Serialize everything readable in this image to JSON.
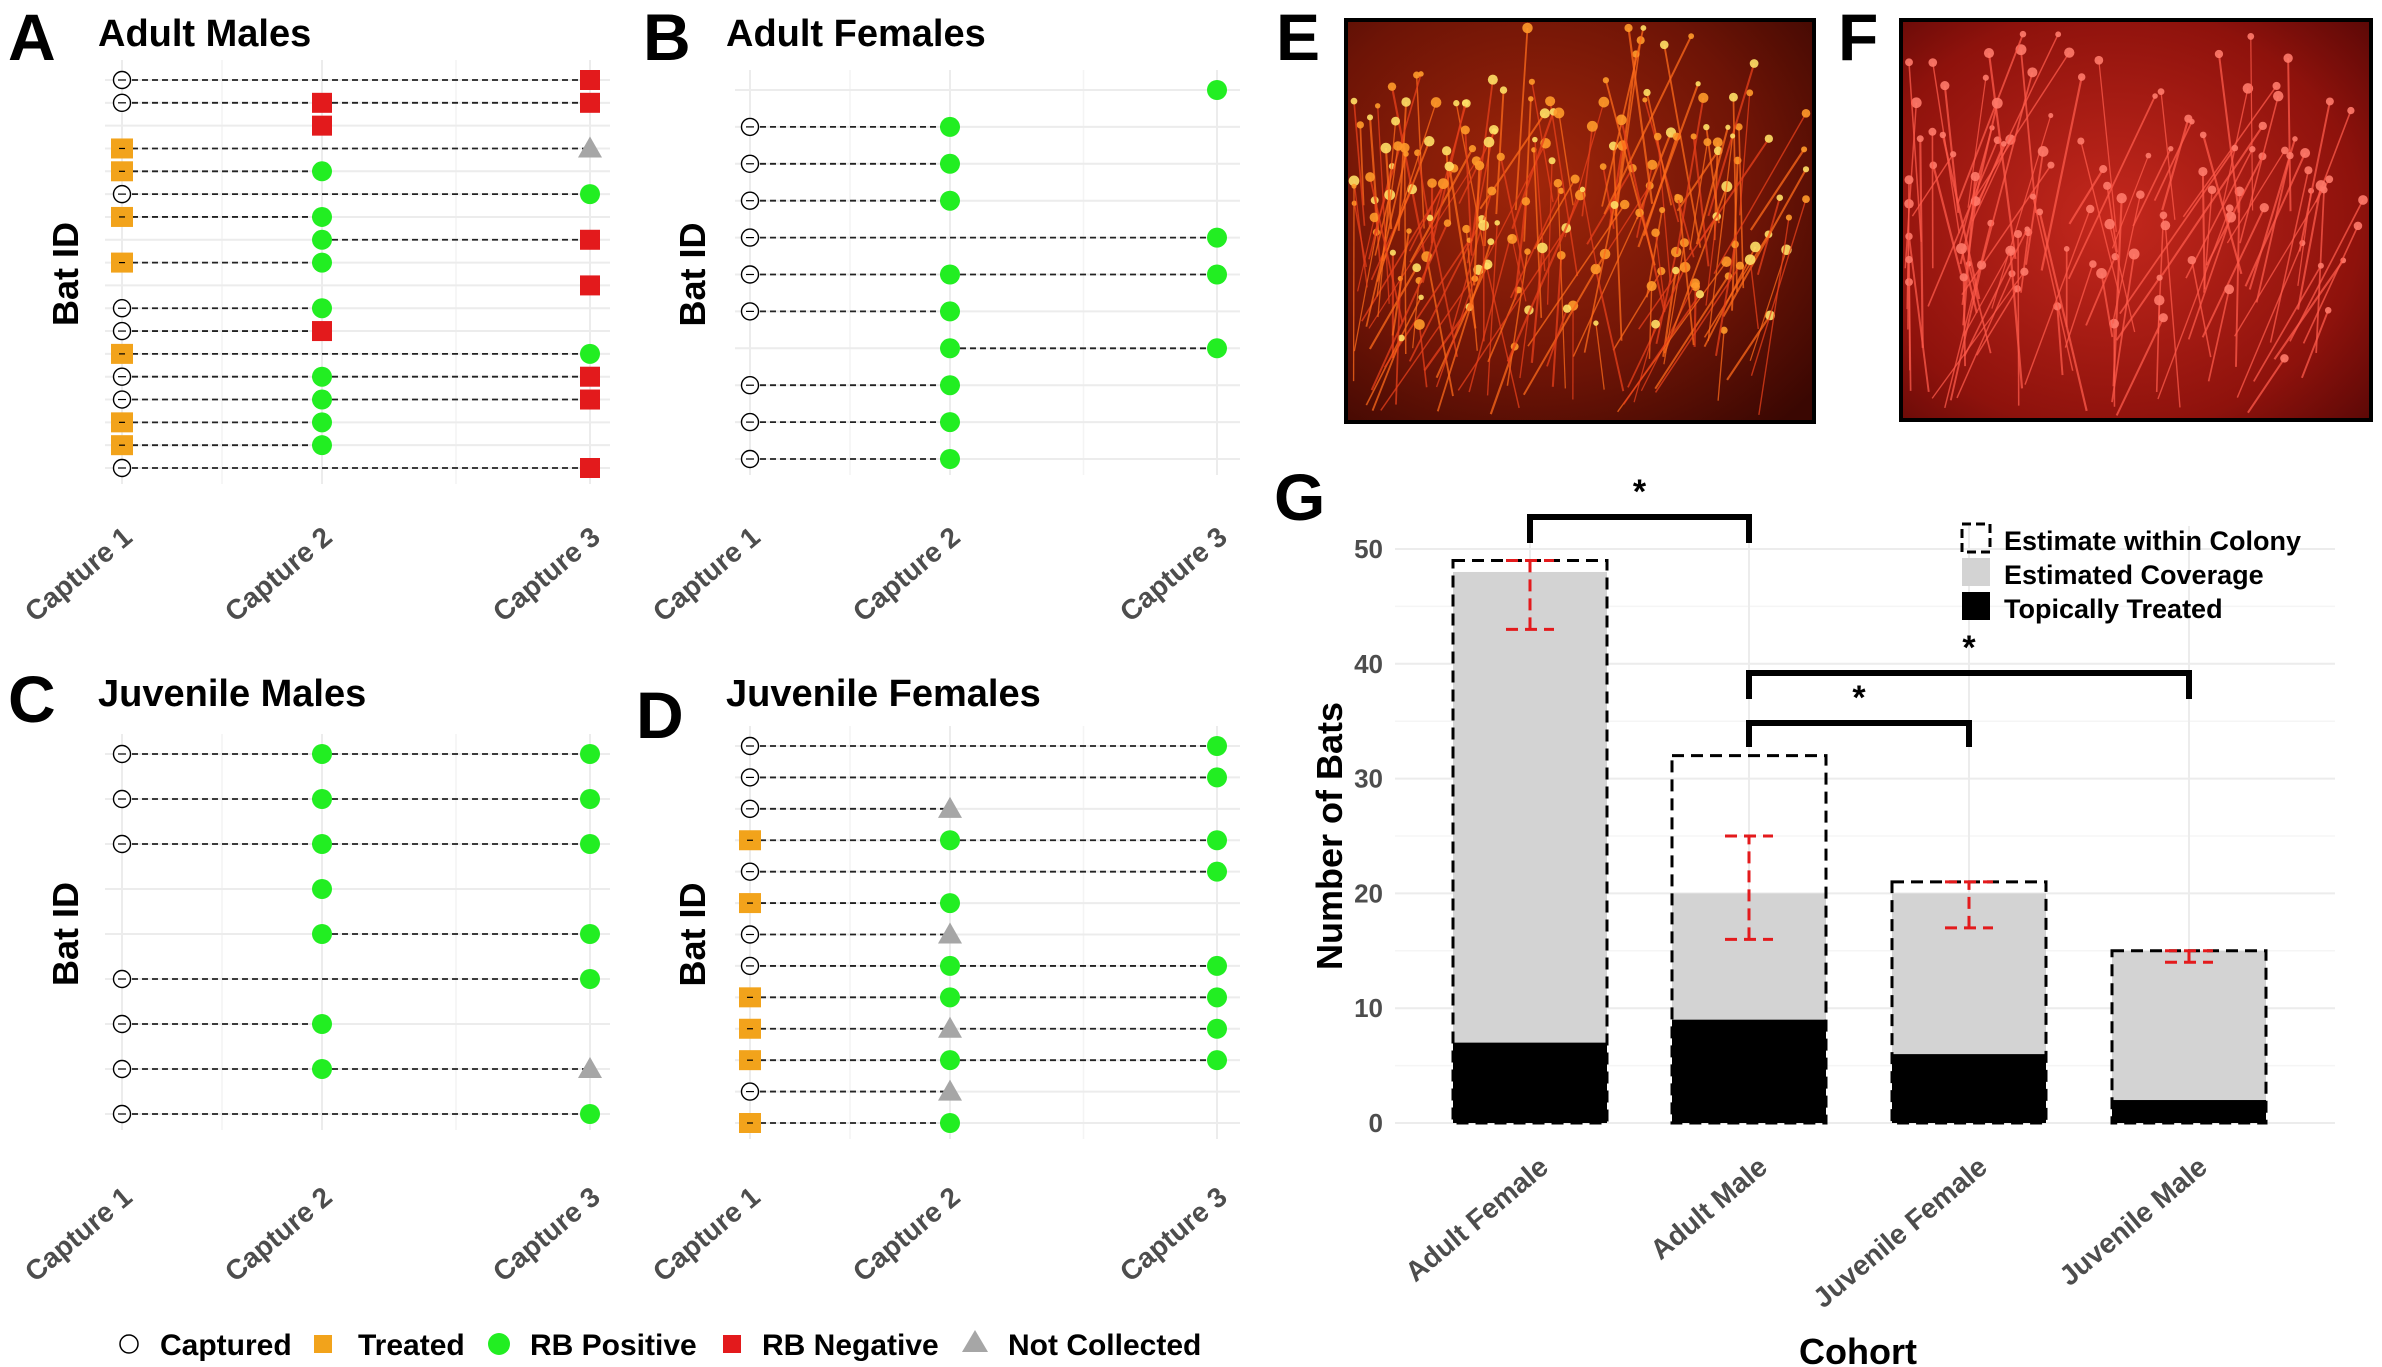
{
  "panel_letters": {
    "A": "A",
    "B": "B",
    "C": "C",
    "D": "D",
    "E": "E",
    "F": "F",
    "G": "G"
  },
  "colors": {
    "captured": "#ffffff",
    "treated": "#f2a31b",
    "rb_positive": "#22ee22",
    "rb_negative": "#e31a1c",
    "not_collected": "#a6a6a6",
    "bar_coverage": "#d3d3d3",
    "bar_treated": "#000000",
    "error_bar": "#e31a1c"
  },
  "legend": {
    "captured": "Captured",
    "treated": "Treated",
    "rb_positive": "RB Positive",
    "rb_negative": "RB Negative",
    "not_collected": "Not Collected"
  },
  "capture_panels": {
    "y_label": "Bat ID",
    "x_ticks": [
      "Capture 1",
      "Capture 2",
      "Capture 3"
    ]
  },
  "chart_data": [
    {
      "panel": "A",
      "type": "scatter",
      "title": "Adult Males",
      "ylabel": "Bat ID",
      "categories": [
        "Capture 1",
        "Capture 2",
        "Capture 3"
      ],
      "rows": [
        {
          "c1": "captured",
          "c2": null,
          "c3": "rb_negative",
          "line": [
            1,
            3
          ]
        },
        {
          "c1": "captured",
          "c2": "rb_negative",
          "c3": "rb_negative",
          "line": [
            1,
            3
          ]
        },
        {
          "c1": null,
          "c2": "rb_negative",
          "c3": null,
          "line": null
        },
        {
          "c1": "treated",
          "c2": null,
          "c3": "not_collected",
          "line": [
            1,
            3
          ]
        },
        {
          "c1": "treated",
          "c2": "rb_positive",
          "c3": null,
          "line": [
            1,
            2
          ]
        },
        {
          "c1": "captured",
          "c2": null,
          "c3": "rb_positive",
          "line": [
            1,
            3
          ]
        },
        {
          "c1": "treated",
          "c2": "rb_positive",
          "c3": null,
          "line": [
            1,
            2
          ]
        },
        {
          "c1": null,
          "c2": "rb_positive",
          "c3": "rb_negative",
          "line": [
            2,
            3
          ]
        },
        {
          "c1": "treated",
          "c2": "rb_positive",
          "c3": null,
          "line": [
            1,
            2
          ]
        },
        {
          "c1": null,
          "c2": null,
          "c3": "rb_negative",
          "line": null
        },
        {
          "c1": "captured",
          "c2": "rb_positive",
          "c3": null,
          "line": [
            1,
            2
          ]
        },
        {
          "c1": "captured",
          "c2": "rb_negative",
          "c3": null,
          "line": [
            1,
            2
          ]
        },
        {
          "c1": "treated",
          "c2": null,
          "c3": "rb_positive",
          "line": [
            1,
            3
          ]
        },
        {
          "c1": "captured",
          "c2": "rb_positive",
          "c3": "rb_negative",
          "line": [
            1,
            3
          ]
        },
        {
          "c1": "captured",
          "c2": "rb_positive",
          "c3": "rb_negative",
          "line": [
            1,
            3
          ]
        },
        {
          "c1": "treated",
          "c2": "rb_positive",
          "c3": null,
          "line": [
            1,
            2
          ]
        },
        {
          "c1": "treated",
          "c2": "rb_positive",
          "c3": null,
          "line": [
            1,
            2
          ]
        },
        {
          "c1": "captured",
          "c2": null,
          "c3": "rb_negative",
          "line": [
            1,
            3
          ]
        }
      ]
    },
    {
      "panel": "B",
      "type": "scatter",
      "title": "Adult Females",
      "ylabel": "Bat ID",
      "categories": [
        "Capture 1",
        "Capture 2",
        "Capture 3"
      ],
      "rows": [
        {
          "c1": null,
          "c2": null,
          "c3": "rb_positive",
          "line": null
        },
        {
          "c1": "captured",
          "c2": "rb_positive",
          "c3": null,
          "line": [
            1,
            2
          ]
        },
        {
          "c1": "captured",
          "c2": "rb_positive",
          "c3": null,
          "line": [
            1,
            2
          ]
        },
        {
          "c1": "captured",
          "c2": "rb_positive",
          "c3": null,
          "line": [
            1,
            2
          ]
        },
        {
          "c1": "captured",
          "c2": null,
          "c3": "rb_positive",
          "line": [
            1,
            3
          ]
        },
        {
          "c1": "captured",
          "c2": "rb_positive",
          "c3": "rb_positive",
          "line": [
            1,
            3
          ]
        },
        {
          "c1": "captured",
          "c2": "rb_positive",
          "c3": null,
          "line": [
            1,
            2
          ]
        },
        {
          "c1": null,
          "c2": "rb_positive",
          "c3": "rb_positive",
          "line": [
            2,
            3
          ]
        },
        {
          "c1": "captured",
          "c2": "rb_positive",
          "c3": null,
          "line": [
            1,
            2
          ]
        },
        {
          "c1": "captured",
          "c2": "rb_positive",
          "c3": null,
          "line": [
            1,
            2
          ]
        },
        {
          "c1": "captured",
          "c2": "rb_positive",
          "c3": null,
          "line": [
            1,
            2
          ]
        }
      ]
    },
    {
      "panel": "C",
      "type": "scatter",
      "title": "Juvenile Males",
      "ylabel": "Bat ID",
      "categories": [
        "Capture 1",
        "Capture 2",
        "Capture 3"
      ],
      "rows": [
        {
          "c1": "captured",
          "c2": "rb_positive",
          "c3": "rb_positive",
          "line": [
            1,
            3
          ]
        },
        {
          "c1": "captured",
          "c2": "rb_positive",
          "c3": "rb_positive",
          "line": [
            1,
            3
          ]
        },
        {
          "c1": "captured",
          "c2": "rb_positive",
          "c3": "rb_positive",
          "line": [
            1,
            3
          ]
        },
        {
          "c1": null,
          "c2": "rb_positive",
          "c3": null,
          "line": null
        },
        {
          "c1": null,
          "c2": "rb_positive",
          "c3": "rb_positive",
          "line": [
            2,
            3
          ]
        },
        {
          "c1": "captured",
          "c2": null,
          "c3": "rb_positive",
          "line": [
            1,
            3
          ]
        },
        {
          "c1": "captured",
          "c2": "rb_positive",
          "c3": null,
          "line": [
            1,
            2
          ]
        },
        {
          "c1": "captured",
          "c2": "rb_positive",
          "c3": "not_collected",
          "line": [
            1,
            3
          ]
        },
        {
          "c1": "captured",
          "c2": null,
          "c3": "rb_positive",
          "line": [
            1,
            3
          ]
        }
      ]
    },
    {
      "panel": "D",
      "type": "scatter",
      "title": "Juvenile Females",
      "ylabel": "Bat ID",
      "categories": [
        "Capture 1",
        "Capture 2",
        "Capture 3"
      ],
      "rows": [
        {
          "c1": "captured",
          "c2": null,
          "c3": "rb_positive",
          "line": [
            1,
            3
          ]
        },
        {
          "c1": "captured",
          "c2": null,
          "c3": "rb_positive",
          "line": [
            1,
            3
          ]
        },
        {
          "c1": "captured",
          "c2": "not_collected",
          "c3": null,
          "line": [
            1,
            2
          ]
        },
        {
          "c1": "treated",
          "c2": "rb_positive",
          "c3": "rb_positive",
          "line": [
            1,
            3
          ]
        },
        {
          "c1": "captured",
          "c2": null,
          "c3": "rb_positive",
          "line": [
            1,
            3
          ]
        },
        {
          "c1": "treated",
          "c2": "rb_positive",
          "c3": null,
          "line": [
            1,
            2
          ]
        },
        {
          "c1": "captured",
          "c2": "not_collected",
          "c3": null,
          "line": [
            1,
            2
          ]
        },
        {
          "c1": "captured",
          "c2": "rb_positive",
          "c3": "rb_positive",
          "line": [
            1,
            3
          ]
        },
        {
          "c1": "treated",
          "c2": "rb_positive",
          "c3": "rb_positive",
          "line": [
            1,
            3
          ]
        },
        {
          "c1": "treated",
          "c2": "not_collected",
          "c3": "rb_positive",
          "line": [
            1,
            3
          ]
        },
        {
          "c1": "treated",
          "c2": "rb_positive",
          "c3": "rb_positive",
          "line": [
            1,
            3
          ]
        },
        {
          "c1": "captured",
          "c2": "not_collected",
          "c3": null,
          "line": [
            1,
            2
          ]
        },
        {
          "c1": "treated",
          "c2": "rb_positive",
          "c3": null,
          "line": [
            1,
            2
          ]
        }
      ]
    },
    {
      "panel": "G",
      "type": "bar",
      "xlabel": "Cohort",
      "ylabel": "Number of Bats",
      "categories": [
        "Adult Female",
        "Adult Male",
        "Juvenile Female",
        "Juvenile Male"
      ],
      "ylim": [
        0,
        52
      ],
      "yticks": [
        0,
        10,
        20,
        30,
        40,
        50
      ],
      "series": [
        {
          "name": "Estimate within Colony",
          "values": [
            49,
            32,
            21,
            15
          ]
        },
        {
          "name": "Estimated Coverage",
          "values": [
            48,
            20,
            20,
            15
          ]
        },
        {
          "name": "Topically Treated",
          "values": [
            7,
            9,
            6,
            2
          ]
        }
      ],
      "error_bars": [
        {
          "low": 43,
          "high": 49
        },
        {
          "low": 16,
          "high": 25
        },
        {
          "low": 17,
          "high": 21
        },
        {
          "low": 14,
          "high": 15
        }
      ],
      "significance": [
        {
          "from": "Adult Female",
          "to": "Adult Male",
          "label": "*"
        },
        {
          "from": "Adult Male",
          "to": "Juvenile Female",
          "label": "*"
        },
        {
          "from": "Adult Male",
          "to": "Juvenile Male",
          "label": "*"
        }
      ],
      "legend_position": "top-right"
    }
  ]
}
